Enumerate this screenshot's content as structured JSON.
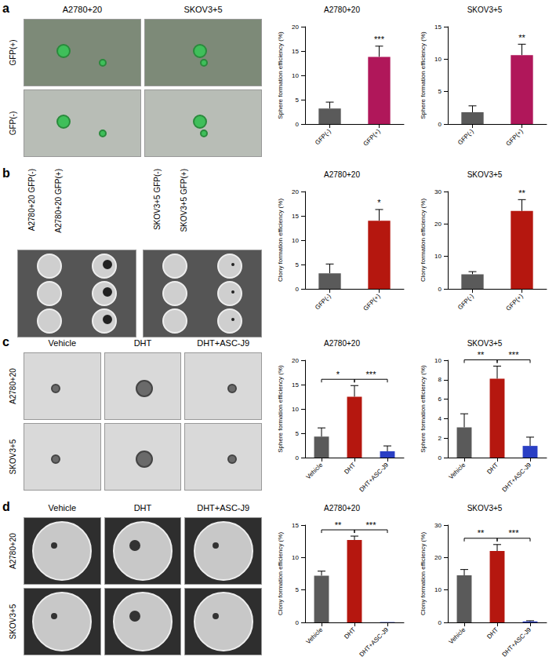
{
  "panels": [
    {
      "label": "a",
      "image_columns": [
        "A2780+20",
        "SKOV3+5"
      ],
      "image_rows": [
        "GFP(+)",
        "GFP(-)"
      ]
    },
    {
      "label": "b",
      "image_groups": [
        "A2780+20 GFP(-)",
        "A2780+20 GFP(+)",
        "SKOV3+5 GFP(-)",
        "SKOV3+5 GFP(+)"
      ]
    },
    {
      "label": "c",
      "image_columns": [
        "Vehicle",
        "DHT",
        "DHT+ASC-J9"
      ],
      "image_rows": [
        "A2780+20",
        "SKOV3+5"
      ]
    },
    {
      "label": "d",
      "image_columns": [
        "Vehicle",
        "DHT",
        "DHT+ASC-J9"
      ],
      "image_rows": [
        "A2780+20",
        "SKOV3+5"
      ]
    }
  ],
  "chart_data": [
    {
      "type": "bar",
      "title": "A2780+20",
      "ylabel": "Sphere formation efficiency (%)",
      "categories": [
        "GFP(-)",
        "GFP(+)"
      ],
      "values": [
        3.2,
        13.8
      ],
      "errors": [
        1.3,
        2.2
      ],
      "colors": [
        "#5a5a5a",
        "#b0175a"
      ],
      "ylim": [
        0,
        20
      ],
      "yticks": [
        0,
        5,
        10,
        15,
        20
      ],
      "grid": false,
      "annotations": [
        {
          "label": "***",
          "categories": [
            1
          ]
        }
      ]
    },
    {
      "type": "bar",
      "title": "SKOV3+5",
      "ylabel": "Sphere formation efficiency (%)",
      "categories": [
        "GFP(-)",
        "GFP(+)"
      ],
      "values": [
        1.8,
        10.6
      ],
      "errors": [
        1.0,
        1.7
      ],
      "colors": [
        "#5a5a5a",
        "#b0175a"
      ],
      "ylim": [
        0,
        15
      ],
      "yticks": [
        0,
        5,
        10,
        15
      ],
      "grid": false,
      "annotations": [
        {
          "label": "**",
          "categories": [
            1
          ]
        }
      ]
    },
    {
      "type": "bar",
      "title": "A2780+20",
      "ylabel": "Clony formation efficiency (%)",
      "categories": [
        "GFP(-)",
        "GFP(+)"
      ],
      "values": [
        3.2,
        14.0
      ],
      "errors": [
        1.9,
        2.3
      ],
      "colors": [
        "#5a5a5a",
        "#b5170f"
      ],
      "ylim": [
        0,
        20
      ],
      "yticks": [
        0,
        5,
        10,
        15,
        20
      ],
      "grid": false,
      "annotations": [
        {
          "label": "*",
          "categories": [
            1
          ]
        }
      ]
    },
    {
      "type": "bar",
      "title": "SKOV3+5",
      "ylabel": "Clony formation efficiency (%)",
      "categories": [
        "GFP(-)",
        "GFP(+)"
      ],
      "values": [
        4.5,
        24.0
      ],
      "errors": [
        0.8,
        3.5
      ],
      "colors": [
        "#5a5a5a",
        "#b5170f"
      ],
      "ylim": [
        0,
        30
      ],
      "yticks": [
        0,
        10,
        20,
        30
      ],
      "grid": false,
      "annotations": [
        {
          "label": "**",
          "categories": [
            1
          ]
        }
      ]
    },
    {
      "type": "bar",
      "title": "A2780+20",
      "ylabel": "Sphere formation efficiency (%)",
      "categories": [
        "Vehicle",
        "DHT",
        "DHT+ASC-J9"
      ],
      "values": [
        4.3,
        12.5,
        1.3
      ],
      "errors": [
        1.8,
        2.3,
        1.1
      ],
      "colors": [
        "#5a5a5a",
        "#b5170f",
        "#2a3fc4"
      ],
      "ylim": [
        0,
        20
      ],
      "yticks": [
        0,
        5,
        10,
        15,
        20
      ],
      "grid": false,
      "annotations": [
        {
          "label": "*",
          "categories": [
            0,
            1
          ]
        },
        {
          "label": "***",
          "categories": [
            1,
            2
          ]
        }
      ]
    },
    {
      "type": "bar",
      "title": "SKOV3+5",
      "ylabel": "Sphere formation efficiency (%)",
      "categories": [
        "Vehicle",
        "DHT",
        "DHT+ASC-J9"
      ],
      "values": [
        3.1,
        8.1,
        1.2
      ],
      "errors": [
        1.4,
        1.3,
        0.9
      ],
      "colors": [
        "#5a5a5a",
        "#b5170f",
        "#2a3fc4"
      ],
      "ylim": [
        0,
        10
      ],
      "yticks": [
        0,
        2,
        4,
        6,
        8,
        10
      ],
      "grid": false,
      "annotations": [
        {
          "label": "**",
          "categories": [
            0,
            1
          ]
        },
        {
          "label": "***",
          "categories": [
            1,
            2
          ]
        }
      ]
    },
    {
      "type": "bar",
      "title": "A2780+20",
      "ylabel": "Clony formation efficiency (%)",
      "categories": [
        "Vehicle",
        "DHT",
        "DHT+ASC-J9"
      ],
      "values": [
        7.2,
        12.7,
        0.05
      ],
      "errors": [
        0.7,
        0.6,
        0
      ],
      "colors": [
        "#5a5a5a",
        "#b5170f",
        "#2a3fc4"
      ],
      "ylim": [
        0,
        15
      ],
      "yticks": [
        0,
        5,
        10,
        15
      ],
      "grid": false,
      "annotations": [
        {
          "label": "**",
          "categories": [
            0,
            1
          ]
        },
        {
          "label": "***",
          "categories": [
            1,
            2
          ]
        }
      ]
    },
    {
      "type": "bar",
      "title": "SKOV3+5",
      "ylabel": "Clony formation efficiency (%)",
      "categories": [
        "Vehicle",
        "DHT",
        "DHT+ASC-J9"
      ],
      "values": [
        14.5,
        22.0,
        0.3
      ],
      "errors": [
        1.8,
        2.0,
        0.2
      ],
      "colors": [
        "#5a5a5a",
        "#b5170f",
        "#2a3fc4"
      ],
      "ylim": [
        0,
        30
      ],
      "yticks": [
        0,
        10,
        20,
        30
      ],
      "grid": false,
      "annotations": [
        {
          "label": "**",
          "categories": [
            0,
            1
          ]
        },
        {
          "label": "***",
          "categories": [
            1,
            2
          ]
        }
      ]
    }
  ]
}
